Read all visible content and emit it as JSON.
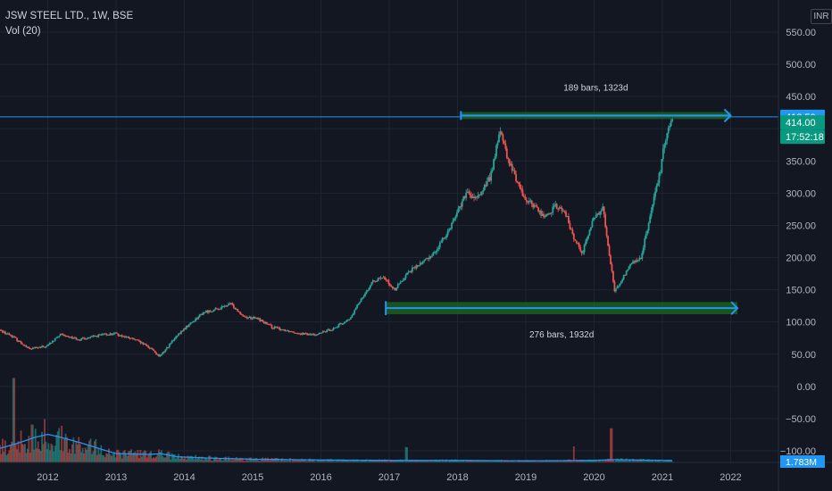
{
  "legend": {
    "symbol_line": "JSW STEEL LTD., 1W, BSE",
    "volume_line": "Vol (20)"
  },
  "currency_label": "INR",
  "colors": {
    "background": "#131722",
    "grid": "#1f2433",
    "up": "#26a69a",
    "down": "#ef5350",
    "accent": "#2196f3",
    "range_fill": "#1b5e20",
    "volume_ma": "#2196f3"
  },
  "chart_data": {
    "type": "candlestick",
    "y_axis": {
      "min": -100,
      "max": 550,
      "ticks": [
        550,
        500,
        450,
        400,
        350,
        300,
        250,
        200,
        150,
        100,
        50,
        0,
        -50,
        -100
      ],
      "tick_labels": [
        "550.00",
        "500.00",
        "450.00",
        "400.00",
        "350.00",
        "300.00",
        "250.00",
        "200.00",
        "150.00",
        "100.00",
        "50.00",
        "0.00",
        "−50.00",
        "−100.00"
      ]
    },
    "x_axis": {
      "start_year": 2011.3,
      "end_year": 2022.7,
      "ticks": [
        2012,
        2013,
        2014,
        2015,
        2016,
        2017,
        2018,
        2019,
        2020,
        2021,
        2022
      ],
      "tick_labels": [
        "2012",
        "2013",
        "2014",
        "2015",
        "2016",
        "2017",
        "2018",
        "2019",
        "2020",
        "2021",
        "2022"
      ]
    },
    "price_path": [
      [
        2011.3,
        88
      ],
      [
        2011.5,
        78
      ],
      [
        2011.75,
        58
      ],
      [
        2012.0,
        62
      ],
      [
        2012.2,
        80
      ],
      [
        2012.5,
        73
      ],
      [
        2012.8,
        80
      ],
      [
        2013.0,
        82
      ],
      [
        2013.3,
        72
      ],
      [
        2013.55,
        58
      ],
      [
        2013.65,
        45
      ],
      [
        2013.8,
        65
      ],
      [
        2014.0,
        88
      ],
      [
        2014.3,
        115
      ],
      [
        2014.5,
        120
      ],
      [
        2014.7,
        128
      ],
      [
        2014.9,
        108
      ],
      [
        2015.1,
        105
      ],
      [
        2015.3,
        92
      ],
      [
        2015.6,
        85
      ],
      [
        2015.85,
        80
      ],
      [
        2016.0,
        82
      ],
      [
        2016.2,
        90
      ],
      [
        2016.45,
        105
      ],
      [
        2016.6,
        135
      ],
      [
        2016.8,
        165
      ],
      [
        2016.95,
        168
      ],
      [
        2017.1,
        150
      ],
      [
        2017.3,
        178
      ],
      [
        2017.5,
        192
      ],
      [
        2017.7,
        210
      ],
      [
        2017.9,
        245
      ],
      [
        2018.0,
        268
      ],
      [
        2018.15,
        300
      ],
      [
        2018.3,
        290
      ],
      [
        2018.5,
        325
      ],
      [
        2018.65,
        400
      ],
      [
        2018.75,
        352
      ],
      [
        2018.85,
        330
      ],
      [
        2019.0,
        292
      ],
      [
        2019.15,
        280
      ],
      [
        2019.3,
        262
      ],
      [
        2019.45,
        280
      ],
      [
        2019.6,
        270
      ],
      [
        2019.7,
        235
      ],
      [
        2019.85,
        208
      ],
      [
        2020.0,
        258
      ],
      [
        2020.1,
        272
      ],
      [
        2020.15,
        278
      ],
      [
        2020.25,
        200
      ],
      [
        2020.32,
        148
      ],
      [
        2020.4,
        160
      ],
      [
        2020.55,
        190
      ],
      [
        2020.7,
        198
      ],
      [
        2020.85,
        268
      ],
      [
        2021.0,
        340
      ],
      [
        2021.05,
        380
      ],
      [
        2021.12,
        405
      ],
      [
        2021.15,
        418
      ]
    ],
    "volume_series": {
      "name": "Vol (20)",
      "profile": [
        [
          2011.3,
          35
        ],
        [
          2011.6,
          50
        ],
        [
          2011.8,
          62
        ],
        [
          2012.0,
          70
        ],
        [
          2012.2,
          62
        ],
        [
          2012.5,
          48
        ],
        [
          2012.8,
          32
        ],
        [
          2013.0,
          22
        ],
        [
          2013.5,
          20
        ],
        [
          2013.65,
          22
        ],
        [
          2013.9,
          14
        ],
        [
          2014.5,
          10
        ],
        [
          2015.0,
          8
        ],
        [
          2016.0,
          6
        ],
        [
          2017.0,
          5
        ],
        [
          2018.0,
          5
        ],
        [
          2019.0,
          4
        ],
        [
          2020.0,
          5
        ],
        [
          2020.3,
          7
        ],
        [
          2020.6,
          6
        ],
        [
          2021.0,
          5
        ],
        [
          2021.15,
          5
        ]
      ],
      "spikes": [
        [
          2011.5,
          210
        ],
        [
          2020.25,
          85
        ],
        [
          2017.25,
          38
        ],
        [
          2019.7,
          40
        ]
      ],
      "last_value_label": "1.783M"
    },
    "series_last": {
      "price": 414,
      "price_label": "414.00",
      "countdown_label": "17:52:18"
    },
    "annotations": {
      "horizontal_line": {
        "price": 418.5,
        "label": "418.50"
      },
      "upper_range": {
        "x_start": 2018.05,
        "x_end": 2022.0,
        "y_low": 415,
        "y_high": 426,
        "label": "189 bars, 1323d"
      },
      "lower_range": {
        "x_start": 2016.95,
        "x_end": 2022.1,
        "y_low": 112,
        "y_high": 131,
        "label": "276 bars, 1932d"
      }
    }
  }
}
